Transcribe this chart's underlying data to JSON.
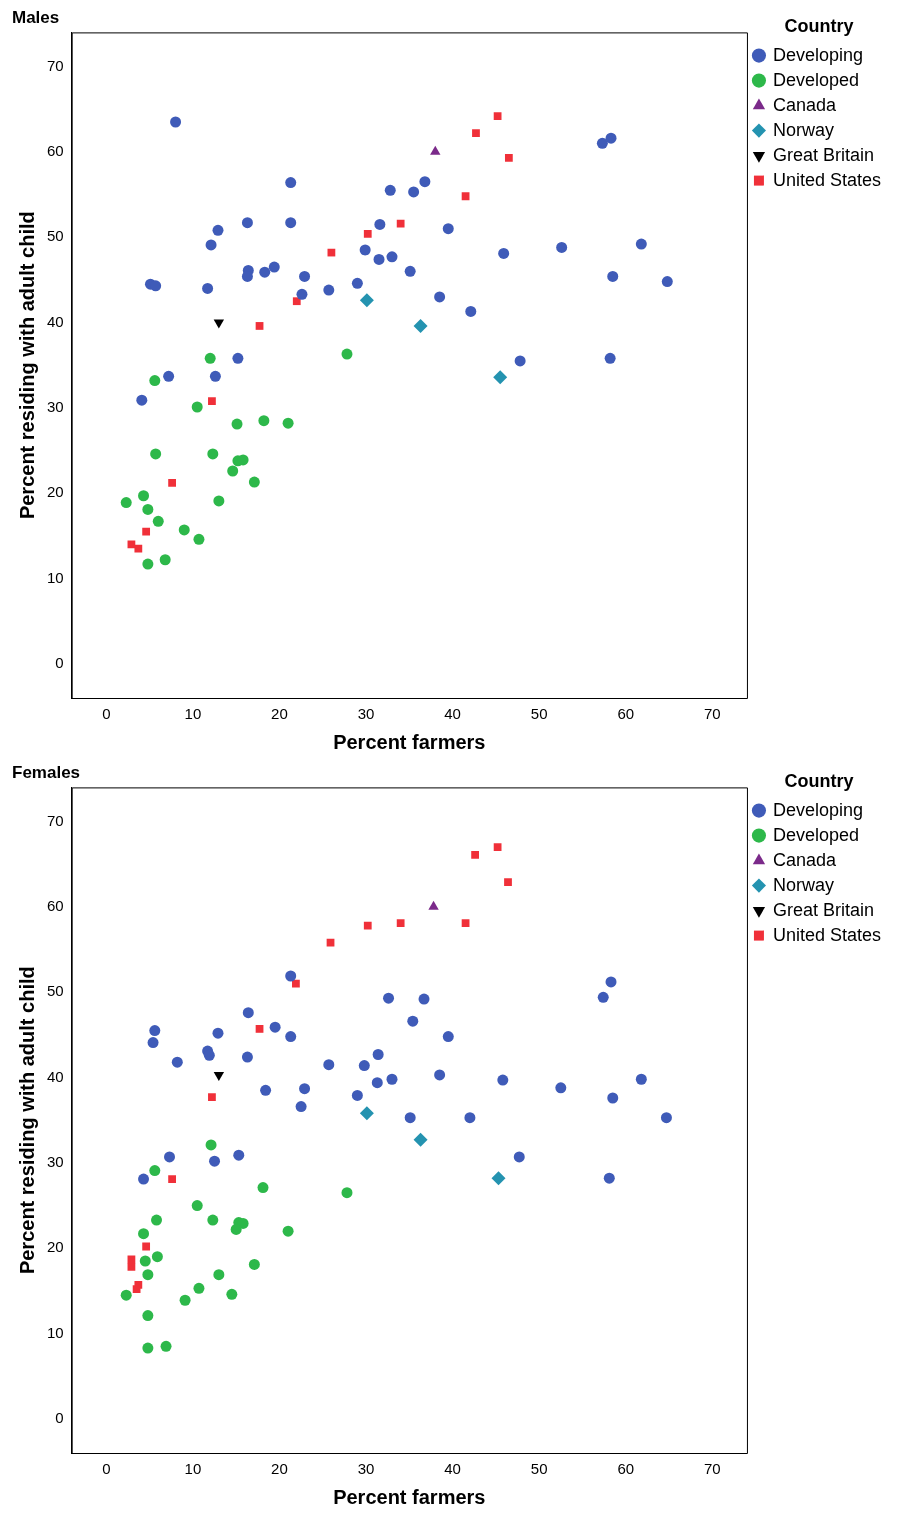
{
  "chart_data": [
    {
      "type": "scatter",
      "title": "Males",
      "xlabel": "Percent farmers",
      "ylabel": "Percent residing with adult child",
      "legend_title": "Country",
      "legend": "right",
      "grid": false,
      "xlim": [
        -4,
        74
      ],
      "ylim": [
        -4,
        74
      ],
      "xticks": [
        0,
        10,
        20,
        30,
        40,
        50,
        60,
        70
      ],
      "yticks": [
        0,
        10,
        20,
        30,
        40,
        50,
        60,
        70
      ],
      "series": [
        {
          "name": "Developing",
          "color": "#3f5bb8",
          "marker": "circle",
          "x": [
            8.0,
            5.1,
            5.7,
            12.9,
            12.1,
            11.7,
            16.3,
            21.3,
            21.3,
            16.4,
            16.3,
            18.3,
            19.4,
            22.9,
            22.6,
            15.2,
            12.6,
            7.2,
            4.1,
            25.7,
            29.0,
            29.9,
            31.5,
            31.6,
            33.0,
            32.8,
            35.5,
            36.8,
            35.1,
            39.5,
            38.5,
            42.1,
            45.9,
            47.8,
            52.6,
            57.3,
            58.3,
            61.8,
            58.5,
            64.8,
            58.2
          ],
          "values": [
            63.5,
            44.5,
            44.3,
            50.8,
            49.1,
            44.0,
            51.7,
            56.4,
            51.7,
            46.1,
            45.4,
            45.9,
            46.5,
            45.4,
            43.3,
            35.8,
            33.7,
            33.7,
            30.9,
            43.8,
            44.6,
            48.5,
            47.4,
            51.5,
            47.7,
            55.5,
            55.3,
            56.5,
            46.0,
            51.0,
            43.0,
            41.3,
            48.1,
            35.5,
            48.8,
            61.0,
            61.6,
            49.2,
            45.4,
            44.8,
            35.8
          ]
        },
        {
          "name": "Developed",
          "color": "#2db84a",
          "marker": "circle",
          "x": [
            12.0,
            5.6,
            27.8,
            10.5,
            15.1,
            18.2,
            21.0,
            5.7,
            12.3,
            15.2,
            15.8,
            14.6,
            17.1,
            13.0,
            4.3,
            2.3,
            4.8,
            6.0,
            9.0,
            10.7,
            4.8,
            6.8
          ],
          "values": [
            35.8,
            33.2,
            36.3,
            30.1,
            28.1,
            28.5,
            28.2,
            24.6,
            24.6,
            23.8,
            23.9,
            22.6,
            21.3,
            19.1,
            19.7,
            18.9,
            18.1,
            16.7,
            15.7,
            14.6,
            11.7,
            12.2
          ]
        },
        {
          "name": "Canada",
          "color": "#7b2a8a",
          "marker": "triangle",
          "x": [
            38.0
          ],
          "values": [
            60.0
          ]
        },
        {
          "name": "Norway",
          "color": "#2493b0",
          "marker": "diamond",
          "x": [
            30.1,
            36.3,
            45.5
          ],
          "values": [
            42.6,
            39.6,
            33.6
          ]
        },
        {
          "name": "Great Britain",
          "color": "#000000",
          "marker": "triangle-down",
          "x": [
            13.0
          ],
          "values": [
            40.0
          ]
        },
        {
          "name": "United States",
          "color": "#f03039",
          "marker": "square",
          "x": [
            45.2,
            42.7,
            46.5,
            41.5,
            34.0,
            30.2,
            26.0,
            22.0,
            17.7,
            12.2,
            7.6,
            4.6,
            2.9,
            3.7
          ],
          "values": [
            64.2,
            62.2,
            59.3,
            54.8,
            51.6,
            50.4,
            48.2,
            42.5,
            39.6,
            30.8,
            21.2,
            15.5,
            14.0,
            13.5
          ]
        }
      ]
    },
    {
      "type": "scatter",
      "title": "Females",
      "xlabel": "Percent farmers",
      "ylabel": "Percent residing with adult child",
      "legend_title": "Country",
      "legend": "right",
      "grid": false,
      "xlim": [
        -4,
        74
      ],
      "ylim": [
        -4,
        74
      ],
      "xticks": [
        0,
        10,
        20,
        30,
        40,
        50,
        60,
        70
      ],
      "yticks": [
        0,
        10,
        20,
        30,
        40,
        50,
        60,
        70
      ],
      "series": [
        {
          "name": "Developing",
          "color": "#3f5bb8",
          "marker": "circle",
          "x": [
            5.6,
            5.4,
            8.2,
            11.7,
            11.9,
            12.9,
            16.4,
            16.3,
            19.5,
            21.3,
            18.4,
            22.9,
            22.5,
            21.3,
            25.7,
            29.8,
            31.4,
            31.3,
            33.0,
            29.0,
            32.6,
            36.7,
            35.4,
            39.5,
            38.5,
            35.1,
            42.0,
            45.8,
            47.7,
            52.5,
            58.3,
            57.4,
            61.8,
            58.5,
            64.7,
            58.1,
            15.3,
            12.5,
            7.3,
            4.3
          ],
          "values": [
            45.5,
            44.1,
            41.8,
            43.1,
            42.6,
            45.2,
            47.6,
            42.4,
            45.9,
            44.8,
            38.5,
            38.7,
            36.6,
            51.9,
            41.5,
            41.4,
            42.7,
            39.4,
            39.8,
            37.9,
            49.3,
            49.2,
            46.6,
            44.8,
            40.3,
            35.3,
            35.3,
            39.7,
            30.7,
            38.8,
            51.2,
            49.4,
            39.8,
            37.6,
            35.3,
            28.2,
            30.9,
            30.2,
            30.7,
            28.1
          ]
        },
        {
          "name": "Developed",
          "color": "#2db84a",
          "marker": "circle",
          "x": [
            12.1,
            5.6,
            27.8,
            18.1,
            10.5,
            5.8,
            12.3,
            15.3,
            15.8,
            15.0,
            21.0,
            4.3,
            4.5,
            5.9,
            4.8,
            13.0,
            17.1,
            10.7,
            9.1,
            14.5,
            2.3,
            4.8,
            4.8,
            6.9
          ],
          "values": [
            32.1,
            29.1,
            26.5,
            27.1,
            25.0,
            23.3,
            23.3,
            23.0,
            22.9,
            22.2,
            22.0,
            21.7,
            18.5,
            19.0,
            16.9,
            16.9,
            18.1,
            15.3,
            13.9,
            14.6,
            14.5,
            12.1,
            8.3,
            8.5
          ]
        },
        {
          "name": "Canada",
          "color": "#7b2a8a",
          "marker": "triangle",
          "x": [
            37.8
          ],
          "values": [
            60.0
          ]
        },
        {
          "name": "Norway",
          "color": "#2493b0",
          "marker": "diamond",
          "x": [
            30.1,
            36.3,
            45.3
          ],
          "values": [
            35.8,
            32.7,
            28.2
          ]
        },
        {
          "name": "Great Britain",
          "color": "#000000",
          "marker": "triangle-down",
          "x": [
            13.0
          ],
          "values": [
            40.3
          ]
        },
        {
          "name": "United States",
          "color": "#f03039",
          "marker": "square",
          "x": [
            45.2,
            42.6,
            46.4,
            41.5,
            34.0,
            30.2,
            25.9,
            21.9,
            17.7,
            12.2,
            7.6,
            4.6,
            2.9,
            2.9,
            3.7,
            3.5
          ],
          "values": [
            67.0,
            66.1,
            62.9,
            58.1,
            58.1,
            57.8,
            55.8,
            51.0,
            45.7,
            37.7,
            28.1,
            20.2,
            18.7,
            17.8,
            15.7,
            15.2
          ]
        }
      ]
    }
  ]
}
